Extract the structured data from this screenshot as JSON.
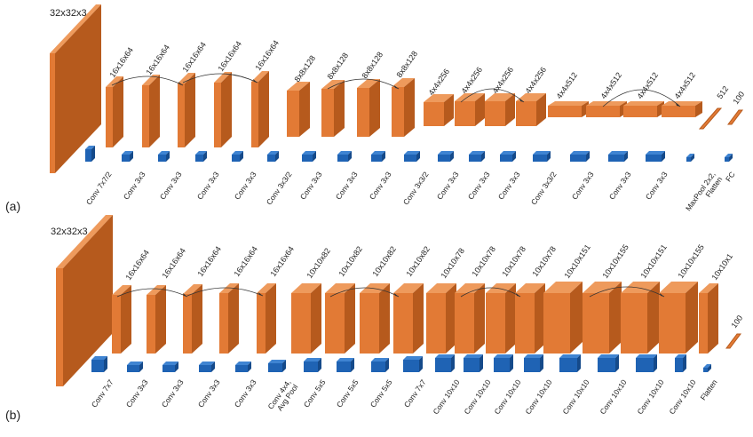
{
  "panels": [
    {
      "letter": "(a)",
      "input_label": "32x32x3",
      "dims": [
        "16x16x64",
        "16x16x64",
        "16x16x64",
        "16x16x64",
        "16x16x64",
        "8x8x128",
        "8x8x128",
        "8x8x128",
        "8x8x128",
        "4x4x256",
        "4x4x256",
        "4x4x256",
        "4x4x256",
        "4x4x512",
        "4x4x512",
        "4x4x512",
        "4x4x512",
        "512",
        "100"
      ],
      "ops": [
        "Conv 7x7/2",
        "Conv 3x3",
        "Conv 3x3",
        "Conv 3x3",
        "Conv 3x3",
        "Conv 3x3/2",
        "Conv 3x3",
        "Conv 3x3",
        "Conv 3x3",
        "Conv 3x3/2",
        "Conv 3x3",
        "Conv 3x3",
        "Conv 3x3",
        "Conv 3x3/2",
        "Conv 3x3",
        "Conv 3x3",
        "Conv 3x3",
        "MaxPool 2x2,\nFlatten",
        "FC"
      ]
    },
    {
      "letter": "(b)",
      "input_label": "32x32x3",
      "dims": [
        "16x16x64",
        "16x16x64",
        "16x16x64",
        "16x16x64",
        "16x16x64",
        "10x10x82",
        "10x10x82",
        "10x10x82",
        "10x10x82",
        "10x10x78",
        "10x10x78",
        "10x10x78",
        "10x10x78",
        "10x10x151",
        "10x10x155",
        "10x10x151",
        "10x10x155",
        "10x10x1",
        "100"
      ],
      "ops": [
        "Conv 7x7",
        "Conv 3x3",
        "Conv 3x3",
        "Conv 3x3",
        "Conv 3x3",
        "Conv 4x4,\nAvg Pool",
        "Conv 5x5",
        "Conv 5x5",
        "Conv 5x5",
        "Conv 7x7",
        "Conv 10x10",
        "Conv 10x10",
        "Conv 10x10",
        "Conv 10x10",
        "Conv 10x10",
        "Conv 10x10",
        "Conv 10x10",
        "Conv 10x10",
        "Flatten"
      ]
    }
  ],
  "colors": {
    "block_front": "#e27a35",
    "block_side": "#b65a1d",
    "block_top": "#ee9a5c",
    "kernel_front": "#1f63b4",
    "kernel_side": "#154a8a",
    "kernel_top": "#3f84d2",
    "arc": "#333333"
  }
}
